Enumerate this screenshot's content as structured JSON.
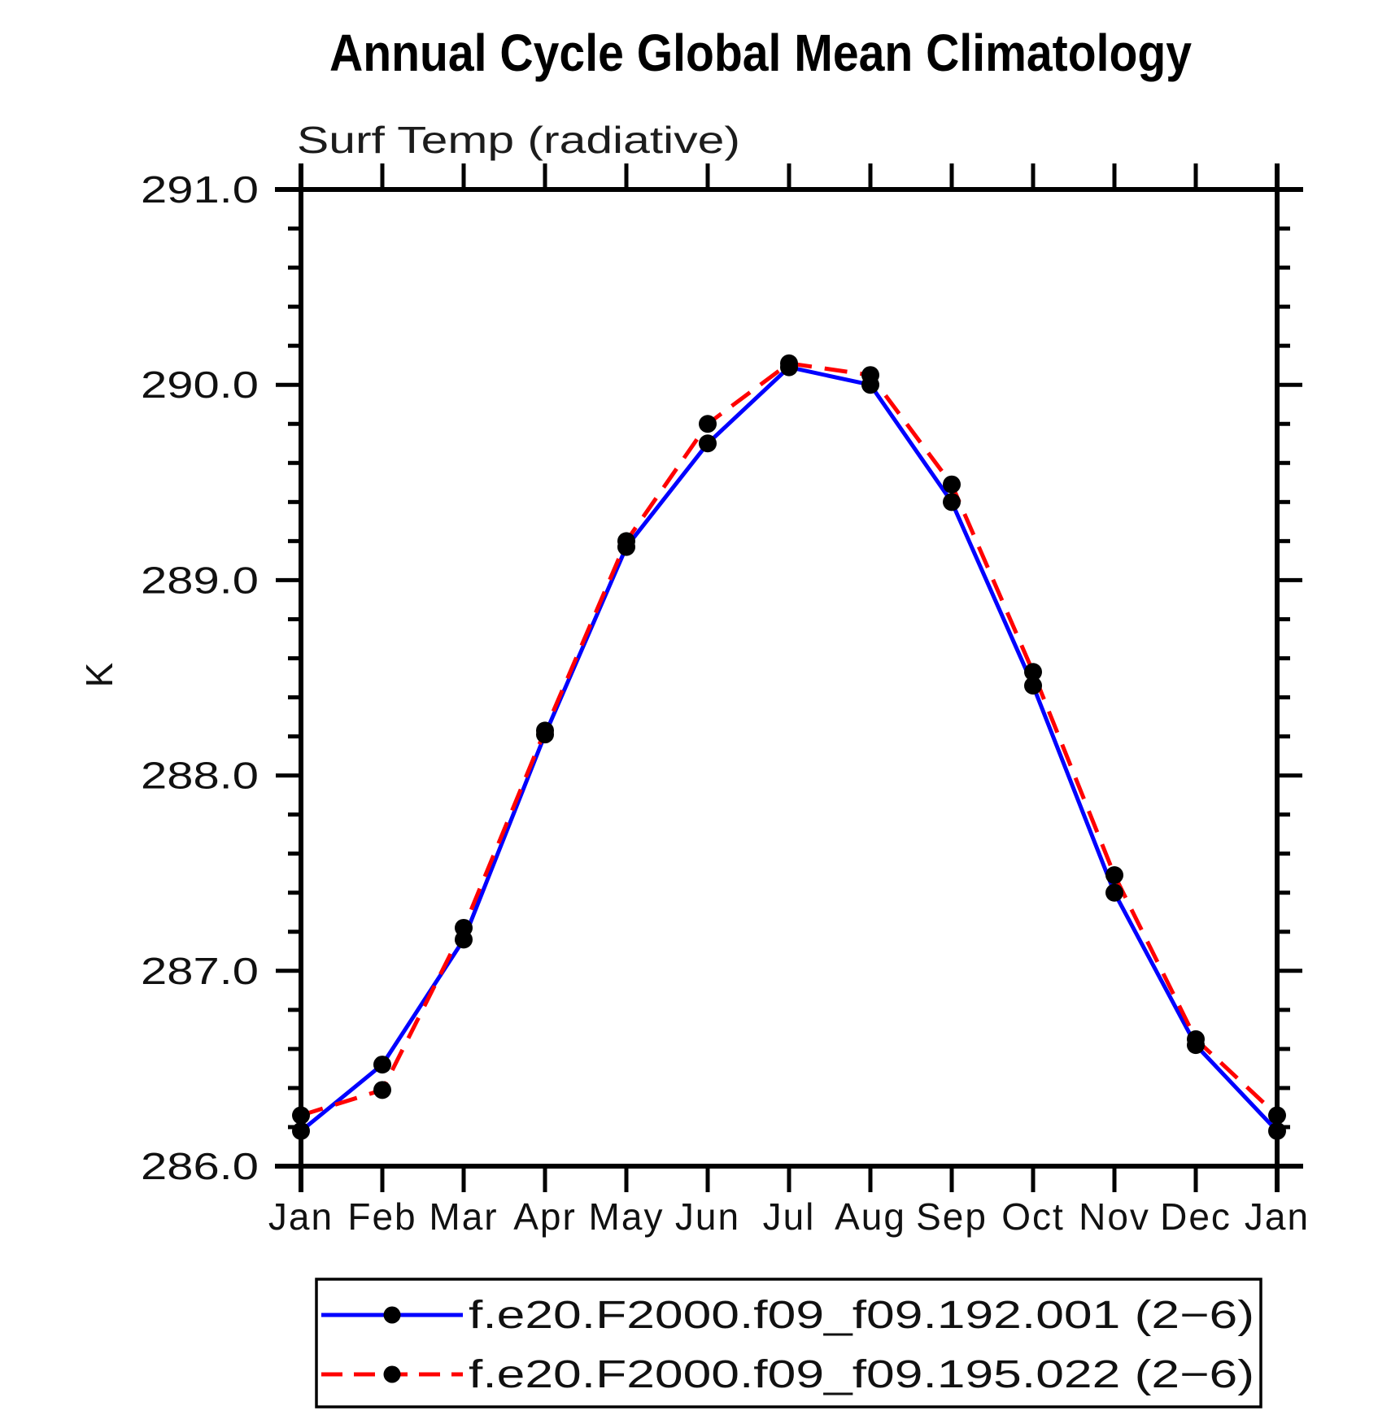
{
  "chart_data": {
    "type": "line",
    "title": "Annual Cycle Global Mean Climatology",
    "subtitle": "Surf Temp (radiative)",
    "ylabel": "K",
    "xlabel": "",
    "categories": [
      "Jan",
      "Feb",
      "Mar",
      "Apr",
      "May",
      "Jun",
      "Jul",
      "Aug",
      "Sep",
      "Oct",
      "Nov",
      "Dec",
      "Jan"
    ],
    "ylim": [
      286.0,
      291.0
    ],
    "y_major_step": 1.0,
    "y_minor_step": 0.2,
    "y_tick_labels": [
      "286.0",
      "287.0",
      "288.0",
      "289.0",
      "290.0",
      "291.0"
    ],
    "grid": false,
    "legend_position": "bottom",
    "marker": "filled-circle",
    "marker_color": "#000000",
    "series": [
      {
        "name": "f.e20.F2000.f09_f09.192.001 (2−6)",
        "color": "#0000ff",
        "style": "solid",
        "values": [
          286.18,
          286.52,
          287.16,
          288.21,
          289.17,
          289.7,
          290.09,
          290.0,
          289.4,
          288.46,
          287.4,
          286.62,
          286.18
        ]
      },
      {
        "name": "f.e20.F2000.f09_f09.195.022 (2−6)",
        "color": "#ff0000",
        "style": "dashed",
        "values": [
          286.26,
          286.39,
          287.22,
          288.23,
          289.2,
          289.8,
          290.11,
          290.05,
          289.49,
          288.53,
          287.49,
          286.65,
          286.26
        ]
      }
    ]
  }
}
